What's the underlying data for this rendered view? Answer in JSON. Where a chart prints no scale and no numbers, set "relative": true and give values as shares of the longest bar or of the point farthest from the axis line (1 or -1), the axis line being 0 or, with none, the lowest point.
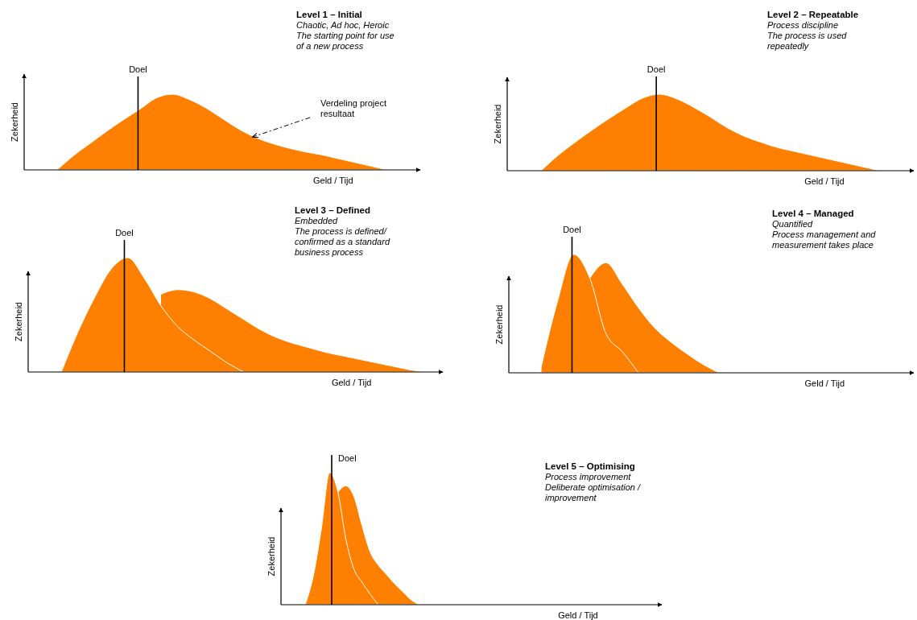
{
  "chart_data": [
    {
      "type": "area",
      "relative": true,
      "title": "Level 1 – Initial",
      "subtitle": "Chaotic, Ad hoc, Heroic\nThe starting point for use\nof a new process",
      "xlabel": "Geld / Tijd",
      "ylabel": "Zekerheid",
      "annotations": [
        "Doel",
        "Verdeling project\nresultaat"
      ],
      "categories": [
        null,
        null,
        null,
        null,
        null,
        null,
        null,
        null,
        null,
        null,
        null,
        null,
        null,
        null,
        null,
        null,
        null,
        null,
        null,
        null,
        null,
        null,
        null,
        null,
        null
      ],
      "series": [
        {
          "color": "#ff8000",
          "values": [
            null,
            null,
            0,
            0.19,
            0.35,
            0.51,
            0.66,
            0.8,
            0.95,
            1,
            0.93,
            0.82,
            0.68,
            0.54,
            0.43,
            0.35,
            0.29,
            0.24,
            0.2,
            0.15,
            0.1,
            0.05,
            0,
            null,
            null
          ]
        }
      ],
      "legend": false
    },
    {
      "type": "area",
      "relative": true,
      "title": "Level 2 – Repeatable",
      "subtitle": "Process discipline\nThe process is used\nrepeatedly",
      "xlabel": "Geld / Tijd",
      "ylabel": "Zekerheid",
      "categories": [
        null,
        null,
        null,
        null,
        null,
        null,
        null,
        null,
        null,
        null,
        null,
        null,
        null,
        null,
        null,
        null,
        null,
        null,
        null,
        null,
        null,
        null,
        null,
        null,
        null
      ],
      "series": [
        {
          "color": "#ff8000",
          "values": [
            null,
            null,
            0,
            0.2,
            0.37,
            0.53,
            0.68,
            0.82,
            0.95,
            1,
            0.94,
            0.83,
            0.7,
            0.56,
            0.45,
            0.37,
            0.3,
            0.25,
            0.2,
            0.15,
            0.1,
            0.05,
            0,
            null,
            null
          ]
        }
      ],
      "annotations": [
        "Doel"
      ]
    },
    {
      "type": "area",
      "relative": true,
      "title": "Level 3 –  Defined",
      "subtitle": "Embedded\nThe process is defined/\nconfirmed as a standard\nbusiness process",
      "xlabel": "Geld / Tijd",
      "ylabel": "Zekerheid",
      "categories": [
        null,
        null,
        null,
        null,
        null,
        null,
        null,
        null,
        null,
        null,
        null,
        null,
        null,
        null,
        null,
        null,
        null,
        null,
        null,
        null,
        null,
        null,
        null,
        null,
        null,
        null
      ],
      "series": [
        {
          "color": "#ff8000",
          "values": [
            null,
            null,
            0,
            0.35,
            0.65,
            0.9,
            1,
            0.82,
            0.58,
            0.4,
            0.28,
            0.18,
            0.08,
            0,
            null,
            null,
            null,
            null,
            null,
            null,
            null,
            null,
            null,
            null,
            null,
            null
          ]
        },
        {
          "color": "#ff8000",
          "values": [
            null,
            null,
            null,
            null,
            null,
            null,
            null,
            null,
            0.68,
            0.72,
            0.7,
            0.64,
            0.55,
            0.46,
            0.37,
            0.3,
            0.25,
            0.21,
            0.17,
            0.14,
            0.11,
            0.08,
            0.05,
            0.02,
            0,
            null
          ]
        }
      ],
      "annotations": [
        "Doel"
      ]
    },
    {
      "type": "area",
      "relative": true,
      "title": "Level 4 – Managed",
      "subtitle": "Quantified\nProcess management and\nmeasurement takes place",
      "xlabel": "Geld / Tijd",
      "ylabel": "Zekerheid",
      "categories": [
        null,
        null,
        null,
        null,
        null,
        null,
        null,
        null,
        null,
        null,
        null,
        null,
        null,
        null,
        null,
        null,
        null,
        null,
        null,
        null,
        null,
        null,
        null,
        null,
        null,
        null
      ],
      "series": [
        {
          "color": "#ff8000",
          "values": [
            null,
            null,
            0.05,
            0.6,
            1,
            0.8,
            0.33,
            0.18,
            0,
            null,
            null,
            null,
            null,
            null,
            null,
            null,
            null,
            null,
            null,
            null,
            null,
            null,
            null,
            null,
            null,
            null
          ]
        },
        {
          "color": "#ff8000",
          "values": [
            null,
            null,
            null,
            null,
            null,
            0.8,
            0.93,
            0.75,
            0.55,
            0.38,
            0.26,
            0.16,
            0.07,
            0,
            null,
            null,
            null,
            null,
            null,
            null,
            null,
            null,
            null,
            null,
            null,
            null
          ]
        }
      ],
      "annotations": [
        "Doel"
      ]
    },
    {
      "type": "area",
      "relative": true,
      "title": "Level 5 – Optimising",
      "subtitle": "Process improvement\nDeliberate optimisation /\nimprovement",
      "xlabel": "Geld / Tijd",
      "ylabel": "Zekerheid",
      "categories": [
        null,
        null,
        null,
        null,
        null,
        null,
        null,
        null,
        null,
        null,
        null,
        null,
        null,
        null,
        null,
        null,
        null,
        null,
        null,
        null,
        null,
        null,
        null,
        null,
        null,
        null,
        null,
        null,
        null,
        null,
        null,
        null,
        null,
        null,
        null,
        null,
        null,
        null,
        null,
        null,
        null,
        null,
        null,
        null,
        null,
        null,
        null,
        null
      ],
      "series": [
        {
          "color": "#ff8000",
          "values": [
            null,
            null,
            null,
            0,
            0.22,
            0.58,
            1,
            0.86,
            0.5,
            0.27,
            0.17,
            0.08,
            0,
            null,
            null,
            null,
            null,
            null,
            null,
            null,
            null,
            null,
            null,
            null,
            null,
            null,
            null,
            null,
            null,
            null,
            null,
            null,
            null,
            null,
            null,
            null,
            null,
            null,
            null,
            null,
            null,
            null,
            null,
            null,
            null,
            null,
            null,
            null
          ]
        },
        {
          "color": "#ff8000",
          "values": [
            null,
            null,
            null,
            null,
            null,
            null,
            null,
            0.85,
            0.9,
            0.82,
            0.6,
            0.4,
            0.3,
            0.23,
            0.16,
            0.1,
            0.04,
            0,
            null,
            null,
            null,
            null,
            null,
            null,
            null,
            null,
            null,
            null,
            null,
            null,
            null,
            null,
            null,
            null,
            null,
            null,
            null,
            null,
            null,
            null,
            null,
            null,
            null,
            null,
            null,
            null,
            null,
            null
          ]
        }
      ],
      "annotations": [
        "Doel"
      ]
    }
  ]
}
